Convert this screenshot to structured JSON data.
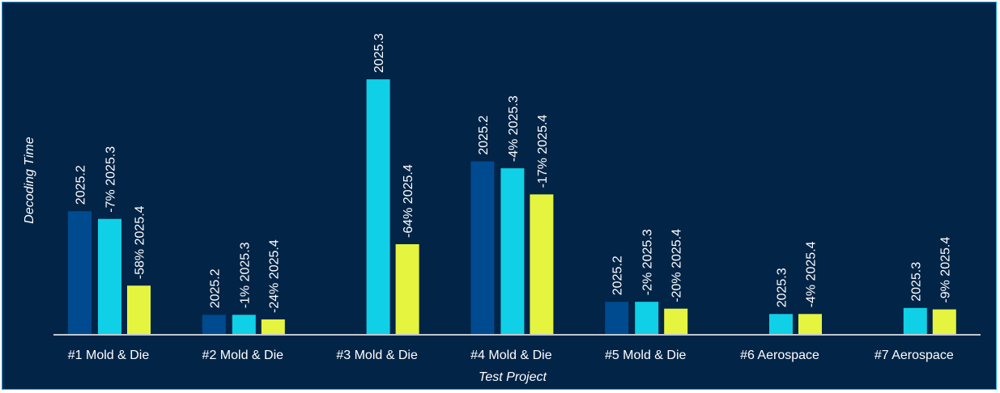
{
  "chart_data": {
    "type": "bar",
    "xlabel": "Test Project",
    "ylabel": "Decoding Time",
    "categories": [
      "#1 Mold & Die",
      "#2 Mold & Die",
      "#3 Mold & Die",
      "#4 Mold & Die",
      "#5 Mold & Die",
      "#6 Aerospace",
      "#7 Aerospace"
    ],
    "ylim": [
      0,
      330
    ],
    "grid": false,
    "series": [
      {
        "name": "2025.2",
        "color": "#004a8f",
        "values": [
          160,
          25,
          null,
          225,
          42,
          null,
          null
        ],
        "labels": [
          "2025.2",
          "2025.2",
          "",
          "2025.2",
          "2025.2",
          "",
          ""
        ]
      },
      {
        "name": "2025.3",
        "color": "#0fd0e6",
        "values": [
          150,
          25,
          332,
          216,
          42,
          26,
          34
        ],
        "labels": [
          "-7% 2025.3",
          "-1% 2025.3",
          "2025.3",
          "-4% 2025.3",
          "-2% 2025.3",
          "2025.3",
          "2025.3"
        ]
      },
      {
        "name": "2025.4",
        "color": "#e5f43f",
        "values": [
          63,
          19,
          117,
          182,
          33,
          26,
          32
        ],
        "labels": [
          "-58% 2025.4",
          "-24% 2025.4",
          "-64% 2025.4",
          "-17% 2025.4",
          "-20% 2025.4",
          "-4% 2025.4",
          "-9% 2025.4"
        ]
      }
    ]
  }
}
